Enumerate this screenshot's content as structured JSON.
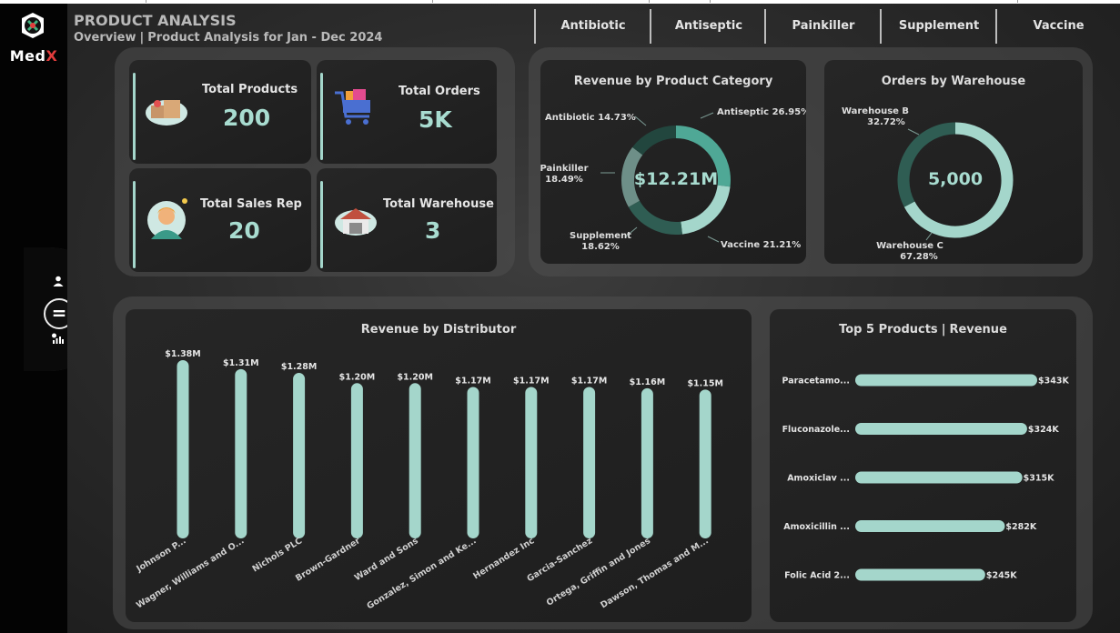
{
  "app": {
    "logo_text_main": "Med",
    "logo_text_accent": "X"
  },
  "header": {
    "title": "PRODUCT ANALYSIS",
    "subtitle_left": "Overview",
    "subtitle_sep": "|",
    "subtitle_right": "Product Analysis for Jan - Dec 2024"
  },
  "tabs": [
    "Antibiotic",
    "Antiseptic",
    "Painkiller",
    "Supplement",
    "Vaccine"
  ],
  "nav": {
    "toggle_label": "="
  },
  "kpis": [
    {
      "label": "Total Products",
      "value": "200",
      "icon": "products-icon"
    },
    {
      "label": "Total Orders",
      "value": "5K",
      "icon": "shopping-cart-icon"
    },
    {
      "label": "Total Sales Rep",
      "value": "20",
      "icon": "sales-rep-icon"
    },
    {
      "label": "Total Warehouse",
      "value": "3",
      "icon": "warehouse-icon"
    }
  ],
  "colors": {
    "accent": "#a4d6cb",
    "teal_mid": "#4fa896",
    "teal_dark": "#2f5d53",
    "green_dark": "#22463e",
    "gray_green": "#6e8f88"
  },
  "chart_data": [
    {
      "type": "pie",
      "variant": "donut",
      "title": "Revenue by Product Category",
      "center_label": "$12.21M",
      "categories": [
        "Antiseptic",
        "Vaccine",
        "Supplement",
        "Painkiller",
        "Antibiotic"
      ],
      "values": [
        26.95,
        21.21,
        18.62,
        18.49,
        14.73
      ],
      "unit": "%",
      "labels": [
        "Antiseptic 26.95%",
        "Vaccine 21.21%",
        "Supplement",
        "18.62%",
        "Painkiller",
        "18.49%",
        "Antibiotic 14.73%"
      ]
    },
    {
      "type": "pie",
      "variant": "donut",
      "title": "Orders by Warehouse",
      "center_label": "5,000",
      "categories": [
        "Warehouse C",
        "Warehouse B"
      ],
      "values": [
        67.28,
        32.72
      ],
      "unit": "%",
      "labels": [
        "Warehouse B",
        "32.72%",
        "Warehouse C",
        "67.28%"
      ]
    },
    {
      "type": "bar",
      "orientation": "vertical",
      "title": "Revenue by Distributor",
      "categories": [
        "Johnson P...",
        "Wagner, Williams and O...",
        "Nichols PLC",
        "Brown-Gardner",
        "Ward and Sons",
        "Gonzalez, Simon and Ke...",
        "Hernandez Inc",
        "Garcia-Sanchez",
        "Ortega, Griffin and Jones",
        "Dawson, Thomas and M..."
      ],
      "values": [
        1.38,
        1.31,
        1.28,
        1.2,
        1.2,
        1.17,
        1.17,
        1.17,
        1.16,
        1.15
      ],
      "value_labels": [
        "$1.38M",
        "$1.31M",
        "$1.28M",
        "$1.20M",
        "$1.20M",
        "$1.17M",
        "$1.17M",
        "$1.17M",
        "$1.16M",
        "$1.15M"
      ],
      "unit": "$M",
      "ylim": [
        0,
        1.38
      ]
    },
    {
      "type": "bar",
      "orientation": "horizontal",
      "title_left": "Top 5 Products",
      "title_sep": "|",
      "title_right": "Revenue",
      "categories": [
        "Paracetamo...",
        "Fluconazole...",
        "Amoxiclav ...",
        "Amoxicillin ...",
        "Folic Acid 2..."
      ],
      "values": [
        343,
        324,
        315,
        282,
        245
      ],
      "value_labels": [
        "$343K",
        "$324K",
        "$315K",
        "$282K",
        "$245K"
      ],
      "unit": "$K",
      "xlim": [
        0,
        343
      ]
    }
  ]
}
